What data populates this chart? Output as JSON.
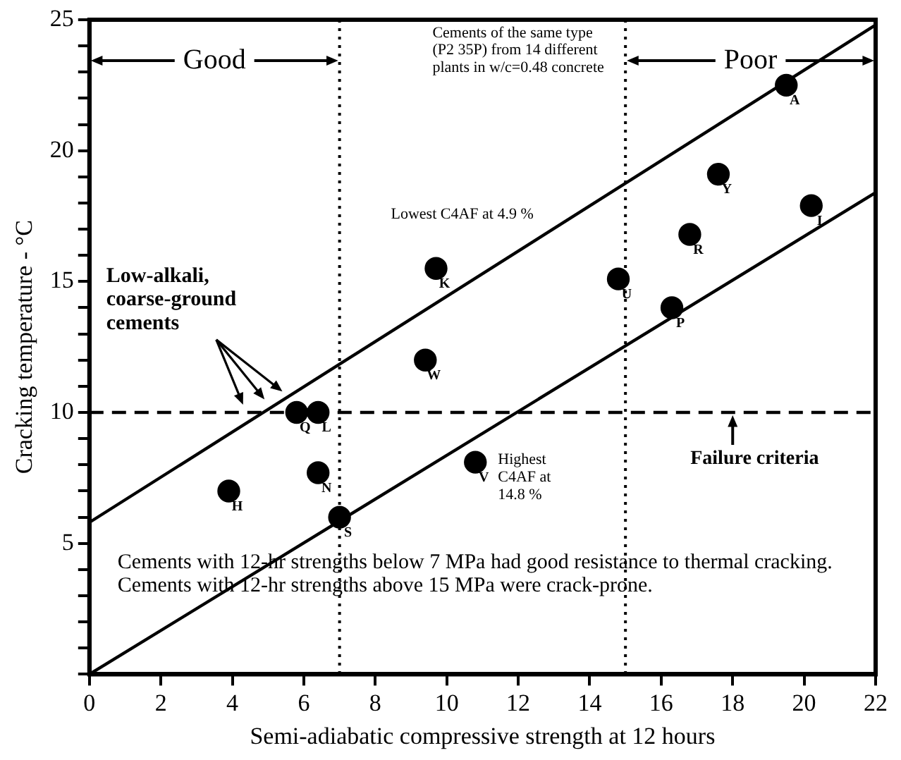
{
  "chart_data": {
    "type": "scatter",
    "xlabel": "Semi-adiabatic compressive strength at 12 hours",
    "ylabel": "Cracking temperature - °C",
    "xlim": [
      0,
      22
    ],
    "xticks": [
      0,
      2,
      4,
      6,
      8,
      10,
      12,
      14,
      16,
      18,
      20,
      22
    ],
    "ylim": [
      0,
      25
    ],
    "yticks": [
      {
        "value": 0,
        "label": null
      },
      {
        "value": 1,
        "label": null
      },
      {
        "value": 2,
        "label": null
      },
      {
        "value": 3,
        "label": null
      },
      {
        "value": 4,
        "label": null
      },
      5,
      {
        "value": 6,
        "label": null
      },
      {
        "value": 7,
        "label": null
      },
      {
        "value": 8,
        "label": null
      },
      {
        "value": 9,
        "label": null
      },
      10,
      {
        "value": 11,
        "label": null
      },
      {
        "value": 12,
        "label": null
      },
      {
        "value": 13,
        "label": null
      },
      {
        "value": 14,
        "label": null
      },
      15,
      {
        "value": 16,
        "label": null
      },
      {
        "value": 17,
        "label": null
      },
      {
        "value": 18,
        "label": null
      },
      {
        "value": 19,
        "label": null
      },
      20,
      {
        "value": 21,
        "label": null
      },
      {
        "value": 22,
        "label": null
      },
      {
        "value": 23,
        "label": null
      },
      {
        "value": 24,
        "label": null
      },
      25
    ],
    "grid": false,
    "legend": false,
    "marker": "circle",
    "series": [
      {
        "type": "scatter",
        "color": "#000000",
        "x": [
          3.9,
          5.8,
          6.4,
          6.4,
          7.0,
          9.4,
          9.7,
          10.8,
          14.8,
          16.3,
          16.8,
          17.6,
          19.5,
          20.2
        ],
        "values": [
          7.0,
          10.0,
          10.0,
          7.7,
          6.0,
          12.0,
          15.5,
          8.1,
          15.1,
          14.0,
          16.8,
          19.1,
          22.5,
          17.9
        ],
        "value_labels": [
          "H",
          "Q",
          "L",
          "N",
          "S",
          "W",
          "K",
          "V",
          "U",
          "P",
          "R",
          "Y",
          "A",
          "I"
        ]
      },
      {
        "type": "line",
        "color": "#000000",
        "line_style": "solid",
        "marker": "none",
        "x": [
          0,
          22
        ],
        "values": [
          5.8,
          24.8
        ]
      },
      {
        "type": "line",
        "color": "#000000",
        "line_style": "solid",
        "marker": "none",
        "x": [
          0,
          22
        ],
        "values": [
          0,
          18.4
        ]
      }
    ],
    "ref_lines": [
      {
        "axis": "x",
        "value": 7,
        "line_style": "dotted",
        "color": "#000000"
      },
      {
        "axis": "x",
        "value": 15,
        "line_style": "dotted",
        "color": "#000000"
      },
      {
        "axis": "y",
        "value": 10,
        "line_style": "dashed",
        "color": "#000000"
      }
    ],
    "annotations": [
      "Good",
      "Poor",
      "Cements of the same type (P2 35P) from 14 different plants in w/c=0.48 concrete",
      {
        "text": "Lowest C4AF at 4.9 %",
        "x": 9.7,
        "y": 15.5
      },
      {
        "text": "Highest C4AF at 14.8 %",
        "x": 10.8,
        "y": 8.1
      },
      {
        "text": "Failure criteria",
        "x": 18,
        "y": 10
      },
      "Low-alkali, coarse-ground cements",
      "Cements with 12-hr strengths below 7 MPa had good resistance to thermal cracking. Cements with 12-hr strengths above 15 MPa were crack-prone."
    ]
  }
}
